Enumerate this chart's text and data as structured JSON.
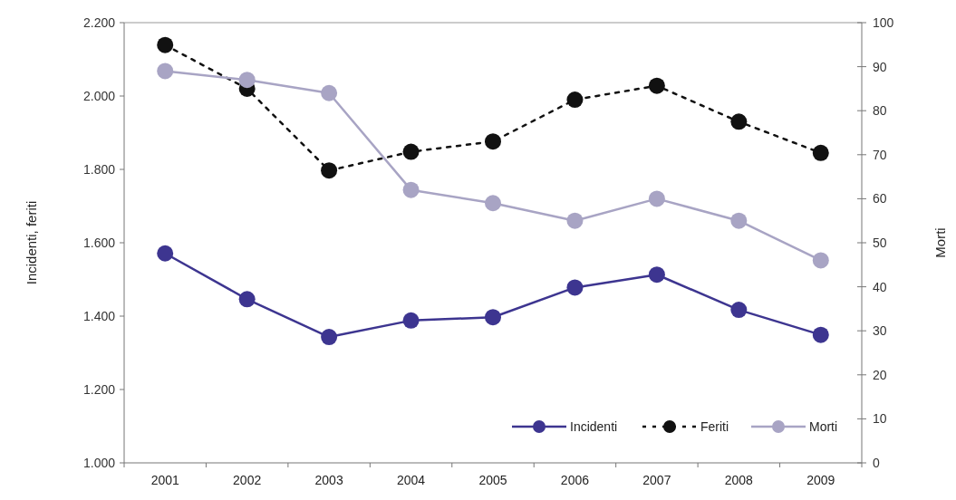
{
  "chart_data": {
    "type": "line",
    "categories": [
      "2001",
      "2002",
      "2003",
      "2004",
      "2005",
      "2006",
      "2007",
      "2008",
      "2009"
    ],
    "series": [
      {
        "name": "Incidenti",
        "color": "#3d3590",
        "values": [
          1571,
          1446,
          1343,
          1388,
          1397,
          1478,
          1513,
          1417,
          1349
        ],
        "line_style": "solid"
      },
      {
        "name": "Feriti",
        "color": "#111111",
        "values": [
          2139,
          2020,
          1797,
          1848,
          1876,
          1990,
          2028,
          1930,
          1845
        ],
        "line_style": "dashed"
      },
      {
        "name": "Morti",
        "color": "#a8a4c4",
        "values": [
          89,
          87,
          84,
          62,
          59,
          55,
          60,
          55,
          46
        ],
        "line_style": "solid",
        "axis": "y2"
      }
    ],
    "ylabel": "Incidenti, feriti",
    "y2label": "Morti",
    "ylim": [
      1000,
      2200
    ],
    "yticks": [
      {
        "value": 1000,
        "label": "1.000"
      },
      {
        "value": 1200,
        "label": "1.200"
      },
      {
        "value": 1400,
        "label": "1.400"
      },
      {
        "value": 1600,
        "label": "1.600"
      },
      {
        "value": 1800,
        "label": "1.800"
      },
      {
        "value": 2000,
        "label": "2.000"
      },
      {
        "value": 2200,
        "label": "2.200"
      }
    ],
    "y2lim": [
      0,
      100
    ],
    "y2ticks": [
      0,
      10,
      20,
      30,
      40,
      50,
      60,
      70,
      80,
      90,
      100
    ],
    "marker": "circle",
    "legend": "bottom right",
    "grid": false
  }
}
